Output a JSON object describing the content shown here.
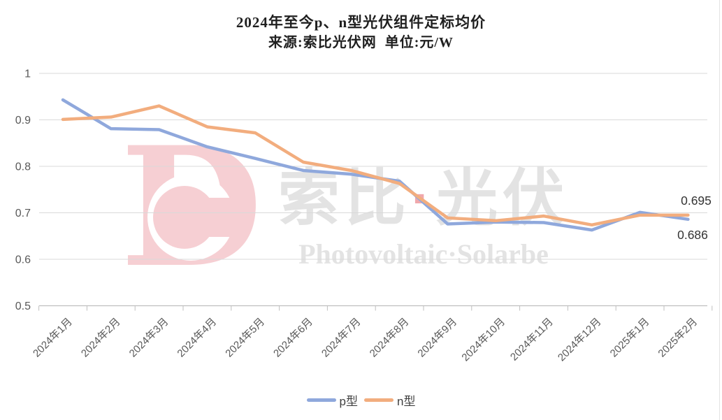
{
  "title": "2024年至今p、n型光伏组件定标均价",
  "subtitle": "来源:索比光伏网  单位:元/W",
  "watermark": {
    "logo_letter": "D",
    "cn_left": "索比",
    "dot": "·",
    "cn_right": "光伏",
    "en": "Photovoltaic·Solarbe"
  },
  "end_labels": {
    "n": "0.695",
    "p": "0.686"
  },
  "chart_data": {
    "type": "line",
    "title": "2024年至今p、n型光伏组件定标均价",
    "subtitle": "来源:索比光伏网 单位:元/W",
    "unit": "元/W",
    "source": "索比光伏网",
    "categories": [
      "2024年1月",
      "2024年2月",
      "2024年3月",
      "2024年4月",
      "2024年5月",
      "2024年6月",
      "2024年7月",
      "2024年8月",
      "2024年9月",
      "2024年10月",
      "2024年11月",
      "2024年12月",
      "2025年1月",
      "2025年2月"
    ],
    "series": [
      {
        "name": "p型",
        "color": "#8FA8DC",
        "values": [
          0.943,
          0.881,
          0.879,
          0.842,
          0.817,
          0.791,
          0.783,
          0.768,
          0.676,
          0.68,
          0.679,
          0.663,
          0.701,
          0.686
        ]
      },
      {
        "name": "n型",
        "color": "#F2AD7E",
        "values": [
          0.901,
          0.906,
          0.93,
          0.885,
          0.872,
          0.809,
          0.791,
          0.763,
          0.689,
          0.683,
          0.693,
          0.674,
          0.695,
          0.695
        ]
      }
    ],
    "ylim": [
      0.5,
      1.0
    ],
    "yticks": [
      {
        "v": 1.0,
        "label": "1"
      },
      {
        "v": 0.9,
        "label": "0.9"
      },
      {
        "v": 0.8,
        "label": "0.8"
      },
      {
        "v": 0.7,
        "label": "0.7"
      },
      {
        "v": 0.6,
        "label": "0.6"
      },
      {
        "v": 0.5,
        "label": "0.5"
      }
    ],
    "grid": true,
    "legend_position": "bottom",
    "end_annotations": [
      {
        "series": "n型",
        "text": "0.695"
      },
      {
        "series": "p型",
        "text": "0.686"
      }
    ]
  },
  "colors": {
    "gridline": "#D9D9D9",
    "axis": "#BFBFBF",
    "axis_text": "#595959",
    "title_text": "#1F1F1F",
    "data_label": "#333333",
    "legend_text": "#404040",
    "watermark_pink": "#F6CFD3",
    "watermark_gray": "#E3E3E3",
    "watermark_dot": "#F0A8AC",
    "line_p": "#8FA8DC",
    "line_n": "#F2AD7E"
  }
}
